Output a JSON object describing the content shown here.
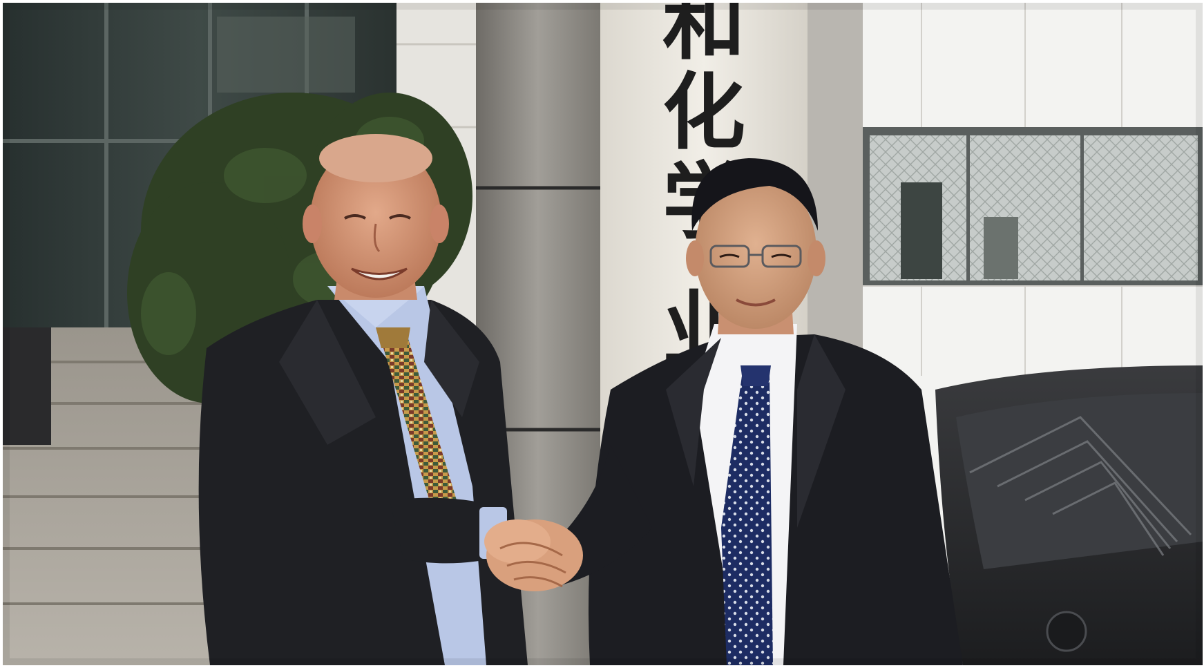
{
  "photo": {
    "description_alt": "",
    "sign_characters": [
      "和",
      "化",
      "学",
      "业"
    ],
    "colors": {
      "sky_wall": "#e9e7e2",
      "glass_door": "#2b3a36",
      "column": "#8f8c86",
      "sign_panel": "#ece9e2",
      "stairs": "#a8a39a",
      "foliage": "#2c3b22",
      "suit_left": "#1f2024",
      "shirt_left": "#b9c7e6",
      "suit_right": "#1c1d22",
      "tie_right": "#1f2e66",
      "car": "#2a2b2d",
      "skin": "#d8a17f"
    }
  }
}
